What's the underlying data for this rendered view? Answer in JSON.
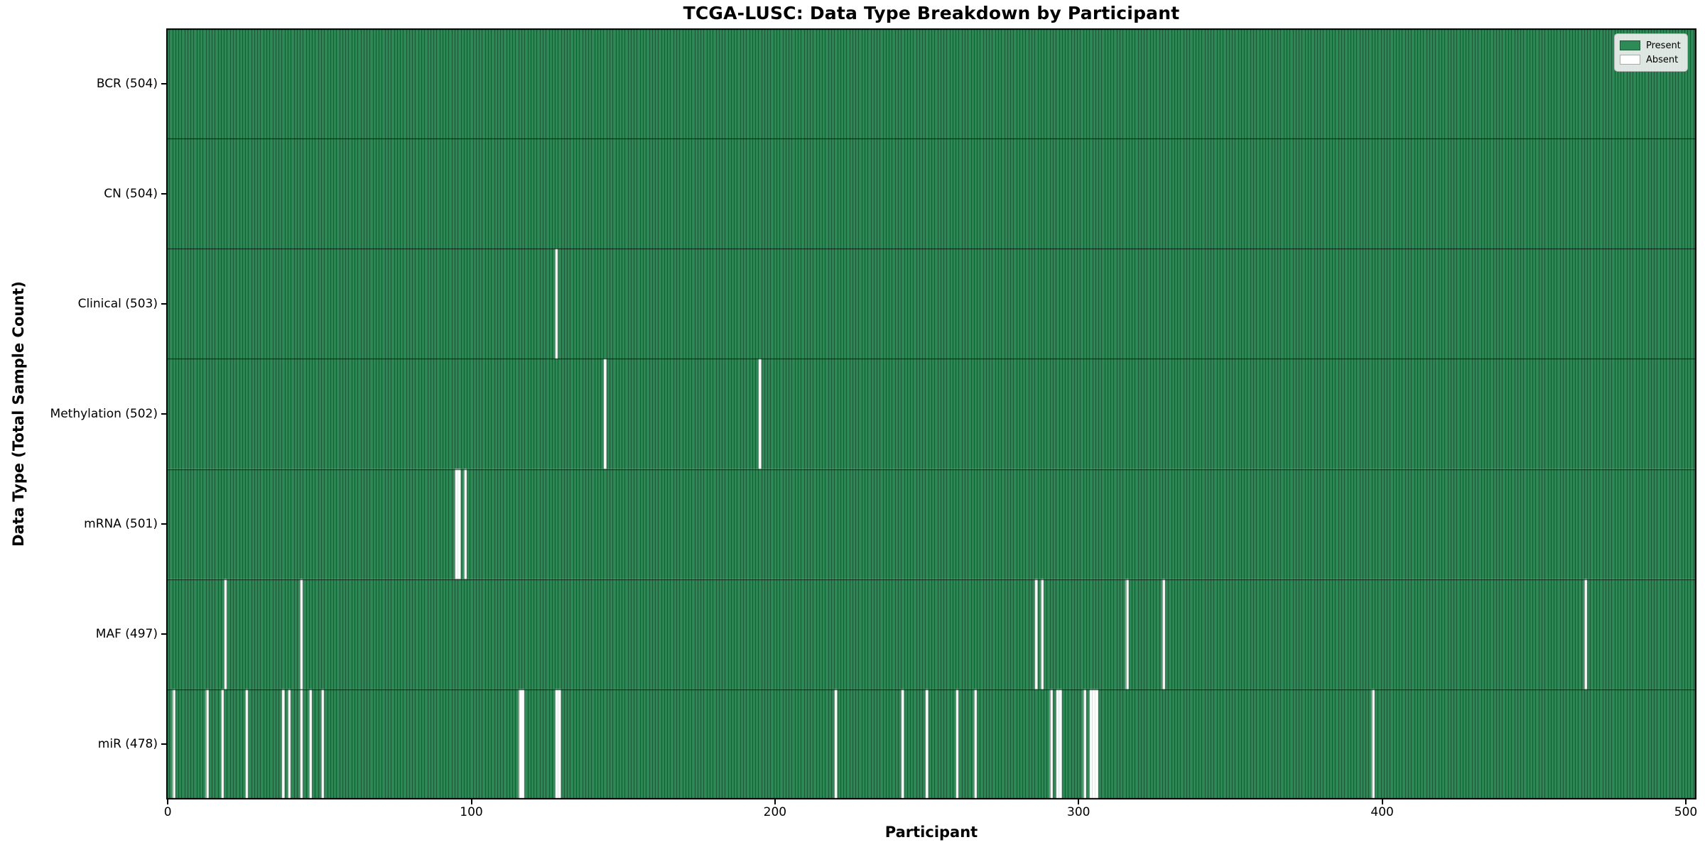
{
  "chart_data": {
    "type": "heatmap",
    "title": "TCGA-LUSC: Data Type Breakdown by Participant",
    "xlabel": "Participant",
    "ylabel": "Data Type (Total Sample Count)",
    "n_participants": 504,
    "x_ticks": [
      0,
      100,
      200,
      300,
      400,
      500
    ],
    "xlim": [
      -0.5,
      503.5
    ],
    "grid": false,
    "legend": {
      "position": "upper right",
      "entries": [
        {
          "label": "Present",
          "color": "#2e8b57"
        },
        {
          "label": "Absent",
          "color": "#ffffff"
        }
      ]
    },
    "colors": {
      "present": "#2e8b57",
      "absent": "#ffffff",
      "bar_edge": "rgba(0,0,0,0.5)",
      "row_divider": "rgba(0,0,0,0.8)",
      "axis_border": "#000000"
    },
    "rows": [
      {
        "label": "BCR (504)",
        "data_type": "BCR",
        "total": 504,
        "absent_count": 0,
        "absent_participants": []
      },
      {
        "label": "CN (504)",
        "data_type": "CN",
        "total": 504,
        "absent_count": 0,
        "absent_participants": []
      },
      {
        "label": "Clinical (503)",
        "data_type": "Clinical",
        "total": 503,
        "absent_count": 1,
        "absent_participants": [
          128
        ]
      },
      {
        "label": "Methylation (502)",
        "data_type": "Methylation",
        "total": 502,
        "absent_count": 2,
        "absent_participants": [
          144,
          195
        ]
      },
      {
        "label": "mRNA (501)",
        "data_type": "mRNA",
        "total": 501,
        "absent_count": 3,
        "absent_participants": [
          95,
          96,
          98
        ]
      },
      {
        "label": "MAF (497)",
        "data_type": "MAF",
        "total": 497,
        "absent_count": 7,
        "absent_participants": [
          19,
          44,
          286,
          288,
          316,
          328,
          467
        ]
      },
      {
        "label": "miR (478)",
        "data_type": "miR",
        "total": 478,
        "absent_count": 26,
        "absent_participants": [
          2,
          13,
          18,
          26,
          38,
          40,
          44,
          47,
          51,
          116,
          117,
          128,
          129,
          220,
          242,
          250,
          260,
          266,
          291,
          293,
          294,
          302,
          304,
          305,
          306,
          397
        ]
      }
    ]
  }
}
